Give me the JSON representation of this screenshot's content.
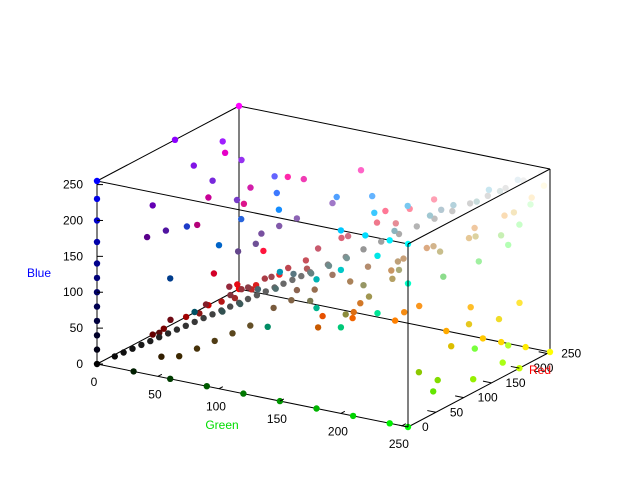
{
  "chart_data": {
    "type": "scatter",
    "subtype": "scatter3d",
    "title": "",
    "xlabel": "Green",
    "ylabel": "Red",
    "zlabel": "Blue",
    "xlabel_color": "#00dd00",
    "ylabel_color": "#ff0000",
    "zlabel_color": "#0000ff",
    "xlim": [
      0,
      255
    ],
    "ylim": [
      0,
      255
    ],
    "zlim": [
      0,
      255
    ],
    "xticks": [
      "0",
      "50",
      "100",
      "150",
      "200",
      "250"
    ],
    "yticks": [
      "0",
      "50",
      "100",
      "150",
      "200",
      "250"
    ],
    "zticks": [
      "0",
      "50",
      "100",
      "150",
      "200",
      "250"
    ],
    "grid": false,
    "legend": "none",
    "point_color_rule": "each point is colored rgb(Red, Green, Blue)",
    "points": [
      [
        0,
        0,
        0
      ],
      [
        0,
        0,
        20
      ],
      [
        0,
        0,
        40
      ],
      [
        0,
        0,
        60
      ],
      [
        0,
        0,
        80
      ],
      [
        0,
        0,
        100
      ],
      [
        0,
        0,
        120
      ],
      [
        0,
        0,
        140
      ],
      [
        0,
        0,
        170
      ],
      [
        0,
        0,
        200
      ],
      [
        0,
        0,
        230
      ],
      [
        0,
        0,
        255
      ],
      [
        0,
        30,
        0
      ],
      [
        0,
        60,
        0
      ],
      [
        0,
        90,
        0
      ],
      [
        0,
        120,
        0
      ],
      [
        0,
        150,
        0
      ],
      [
        0,
        180,
        0
      ],
      [
        0,
        210,
        0
      ],
      [
        0,
        240,
        0
      ],
      [
        0,
        255,
        0
      ],
      [
        0,
        200,
        255
      ],
      [
        0,
        220,
        255
      ],
      [
        0,
        240,
        255
      ],
      [
        0,
        255,
        255
      ],
      [
        0,
        200,
        200
      ],
      [
        0,
        230,
        230
      ],
      [
        0,
        180,
        180
      ],
      [
        0,
        150,
        180
      ],
      [
        0,
        100,
        200
      ],
      [
        0,
        60,
        140
      ],
      [
        0,
        80,
        100
      ],
      [
        0,
        200,
        120
      ],
      [
        0,
        230,
        150
      ],
      [
        0,
        255,
        200
      ],
      [
        0,
        180,
        140
      ],
      [
        0,
        140,
        100
      ],
      [
        60,
        120,
        255
      ],
      [
        80,
        160,
        255
      ],
      [
        40,
        100,
        220
      ],
      [
        30,
        60,
        200
      ],
      [
        100,
        180,
        255
      ],
      [
        120,
        200,
        240
      ],
      [
        20,
        140,
        255
      ],
      [
        60,
        200,
        255
      ],
      [
        100,
        100,
        255
      ],
      [
        140,
        0,
        255
      ],
      [
        120,
        40,
        220
      ],
      [
        160,
        30,
        255
      ],
      [
        100,
        0,
        180
      ],
      [
        120,
        60,
        200
      ],
      [
        130,
        20,
        230
      ],
      [
        80,
        20,
        160
      ],
      [
        90,
        0,
        140
      ],
      [
        150,
        50,
        240
      ],
      [
        255,
        0,
        255
      ],
      [
        230,
        0,
        200
      ],
      [
        255,
        40,
        170
      ],
      [
        220,
        20,
        140
      ],
      [
        255,
        100,
        200
      ],
      [
        240,
        60,
        180
      ],
      [
        200,
        0,
        150
      ],
      [
        210,
        30,
        170
      ],
      [
        180,
        0,
        120
      ],
      [
        255,
        0,
        0
      ],
      [
        200,
        0,
        0
      ],
      [
        240,
        40,
        40
      ],
      [
        180,
        20,
        20
      ],
      [
        220,
        30,
        30
      ],
      [
        255,
        20,
        60
      ],
      [
        230,
        10,
        20
      ],
      [
        160,
        0,
        0
      ],
      [
        210,
        0,
        40
      ],
      [
        190,
        40,
        40
      ],
      [
        120,
        0,
        0
      ],
      [
        140,
        20,
        20
      ],
      [
        100,
        0,
        0
      ],
      [
        150,
        40,
        60
      ],
      [
        130,
        30,
        40
      ],
      [
        110,
        10,
        20
      ],
      [
        160,
        40,
        40
      ],
      [
        90,
        10,
        10
      ],
      [
        255,
        128,
        0
      ],
      [
        240,
        100,
        0
      ],
      [
        230,
        80,
        0
      ],
      [
        250,
        150,
        30
      ],
      [
        255,
        170,
        0
      ],
      [
        220,
        110,
        20
      ],
      [
        200,
        90,
        0
      ],
      [
        255,
        190,
        40
      ],
      [
        245,
        140,
        20
      ],
      [
        210,
        120,
        40
      ],
      [
        255,
        200,
        0
      ],
      [
        255,
        215,
        0
      ],
      [
        255,
        235,
        0
      ],
      [
        255,
        255,
        0
      ],
      [
        240,
        220,
        40
      ],
      [
        230,
        200,
        30
      ],
      [
        255,
        230,
        60
      ],
      [
        220,
        190,
        0
      ],
      [
        200,
        255,
        0
      ],
      [
        180,
        255,
        40
      ],
      [
        150,
        240,
        0
      ],
      [
        130,
        220,
        0
      ],
      [
        120,
        255,
        60
      ],
      [
        170,
        255,
        20
      ],
      [
        100,
        230,
        0
      ],
      [
        140,
        200,
        0
      ],
      [
        200,
        150,
        100
      ],
      [
        220,
        170,
        130
      ],
      [
        240,
        200,
        160
      ],
      [
        250,
        220,
        180
      ],
      [
        255,
        240,
        210
      ],
      [
        230,
        200,
        150
      ],
      [
        210,
        180,
        140
      ],
      [
        190,
        160,
        120
      ],
      [
        255,
        250,
        230
      ],
      [
        245,
        230,
        190
      ],
      [
        160,
        120,
        100
      ],
      [
        140,
        100,
        80
      ],
      [
        120,
        90,
        60
      ],
      [
        180,
        140,
        110
      ],
      [
        150,
        110,
        80
      ],
      [
        170,
        130,
        90
      ],
      [
        130,
        100,
        70
      ],
      [
        200,
        160,
        120
      ],
      [
        180,
        160,
        100
      ],
      [
        160,
        150,
        80
      ],
      [
        140,
        140,
        60
      ],
      [
        120,
        120,
        80
      ],
      [
        200,
        190,
        140
      ],
      [
        220,
        210,
        160
      ],
      [
        170,
        170,
        120
      ],
      [
        150,
        150,
        100
      ],
      [
        200,
        220,
        220
      ],
      [
        180,
        200,
        210
      ],
      [
        220,
        230,
        230
      ],
      [
        160,
        200,
        210
      ],
      [
        140,
        180,
        190
      ],
      [
        200,
        230,
        240
      ],
      [
        180,
        210,
        220
      ],
      [
        230,
        240,
        245
      ],
      [
        100,
        130,
        130
      ],
      [
        80,
        110,
        110
      ],
      [
        60,
        90,
        90
      ],
      [
        120,
        150,
        150
      ],
      [
        90,
        120,
        130
      ],
      [
        70,
        100,
        110
      ],
      [
        110,
        140,
        140
      ],
      [
        50,
        80,
        80
      ],
      [
        255,
        140,
        160
      ],
      [
        240,
        120,
        140
      ],
      [
        220,
        100,
        120
      ],
      [
        255,
        160,
        180
      ],
      [
        230,
        140,
        150
      ],
      [
        210,
        110,
        130
      ],
      [
        255,
        120,
        150
      ],
      [
        200,
        90,
        110
      ],
      [
        170,
        60,
        70
      ],
      [
        150,
        50,
        60
      ],
      [
        190,
        70,
        80
      ],
      [
        140,
        60,
        70
      ],
      [
        180,
        90,
        90
      ],
      [
        160,
        70,
        80
      ],
      [
        200,
        80,
        90
      ],
      [
        130,
        50,
        60
      ],
      [
        120,
        80,
        160
      ],
      [
        100,
        70,
        140
      ],
      [
        140,
        100,
        180
      ],
      [
        160,
        120,
        200
      ],
      [
        130,
        90,
        170
      ],
      [
        110,
        80,
        150
      ],
      [
        60,
        40,
        0
      ],
      [
        80,
        60,
        20
      ],
      [
        100,
        80,
        40
      ],
      [
        70,
        50,
        10
      ],
      [
        90,
        70,
        30
      ],
      [
        50,
        30,
        0
      ],
      [
        30,
        30,
        30
      ],
      [
        50,
        50,
        50
      ],
      [
        70,
        70,
        70
      ],
      [
        90,
        90,
        90
      ],
      [
        110,
        110,
        110
      ],
      [
        130,
        130,
        130
      ],
      [
        150,
        150,
        150
      ],
      [
        170,
        170,
        170
      ],
      [
        190,
        190,
        190
      ],
      [
        210,
        210,
        210
      ],
      [
        230,
        230,
        230
      ],
      [
        250,
        250,
        250
      ],
      [
        20,
        20,
        20
      ],
      [
        40,
        40,
        40
      ],
      [
        60,
        60,
        60
      ],
      [
        80,
        80,
        80
      ],
      [
        100,
        100,
        100
      ],
      [
        120,
        120,
        120
      ],
      [
        140,
        140,
        140
      ],
      [
        160,
        160,
        160
      ],
      [
        180,
        180,
        180
      ],
      [
        200,
        200,
        200
      ],
      [
        220,
        220,
        220
      ],
      [
        240,
        240,
        240
      ],
      [
        10,
        10,
        10
      ],
      [
        15,
        15,
        15
      ],
      [
        25,
        25,
        25
      ],
      [
        35,
        35,
        35
      ],
      [
        45,
        45,
        45
      ],
      [
        55,
        55,
        55
      ],
      [
        65,
        65,
        65
      ],
      [
        75,
        75,
        75
      ],
      [
        85,
        85,
        85
      ],
      [
        95,
        95,
        95
      ],
      [
        105,
        105,
        105
      ],
      [
        115,
        115,
        115
      ],
      [
        200,
        255,
        200
      ],
      [
        180,
        255,
        180
      ],
      [
        220,
        255,
        220
      ],
      [
        160,
        240,
        160
      ],
      [
        140,
        220,
        140
      ],
      [
        200,
        240,
        180
      ]
    ]
  }
}
